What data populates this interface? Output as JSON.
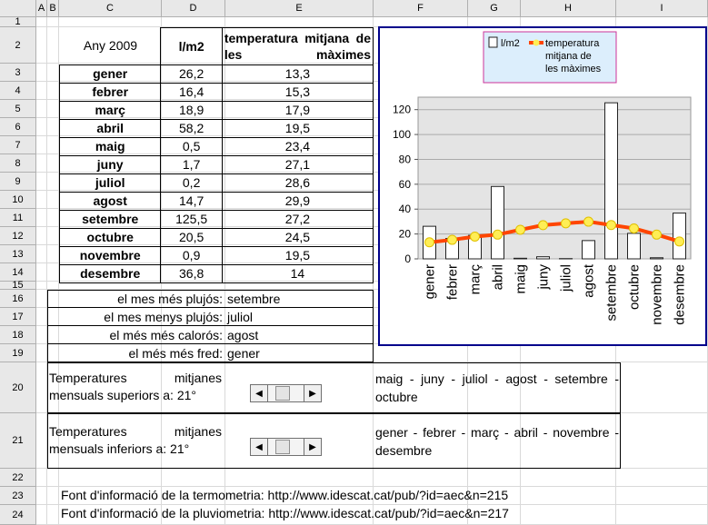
{
  "columns": [
    "A",
    "B",
    "C",
    "D",
    "E",
    "F",
    "G",
    "H",
    "I"
  ],
  "rows": [
    "1",
    "2",
    "3",
    "4",
    "5",
    "6",
    "7",
    "8",
    "9",
    "10",
    "11",
    "12",
    "13",
    "14",
    "15",
    "16",
    "17",
    "18",
    "19",
    "20",
    "21",
    "22",
    "23",
    "24"
  ],
  "table": {
    "year_label": "Any 2009",
    "col_rain": "l/m2",
    "col_temp": "temperatura mitjana de les màximes",
    "months": [
      {
        "name": "gener",
        "rain": "26,2",
        "temp": "13,3"
      },
      {
        "name": "febrer",
        "rain": "16,4",
        "temp": "15,3"
      },
      {
        "name": "març",
        "rain": "18,9",
        "temp": "17,9"
      },
      {
        "name": "abril",
        "rain": "58,2",
        "temp": "19,5"
      },
      {
        "name": "maig",
        "rain": "0,5",
        "temp": "23,4"
      },
      {
        "name": "juny",
        "rain": "1,7",
        "temp": "27,1"
      },
      {
        "name": "juliol",
        "rain": "0,2",
        "temp": "28,6"
      },
      {
        "name": "agost",
        "rain": "14,7",
        "temp": "29,9"
      },
      {
        "name": "setembre",
        "rain": "125,5",
        "temp": "27,2"
      },
      {
        "name": "octubre",
        "rain": "20,5",
        "temp": "24,5"
      },
      {
        "name": "novembre",
        "rain": "0,9",
        "temp": "19,5"
      },
      {
        "name": "desembre",
        "rain": "36,8",
        "temp": "14"
      }
    ]
  },
  "summary": [
    {
      "label": "el mes més plujós:",
      "value": "setembre"
    },
    {
      "label": "el mes menys plujós:",
      "value": "juliol"
    },
    {
      "label": "el més més calorós:",
      "value": "agost"
    },
    {
      "label": "el més més fred:",
      "value": "gener"
    }
  ],
  "controls": {
    "sup_label_1": "Temperatures mitjanes",
    "sup_label_2": "mensuals superiors a: 21°",
    "sup_result": "maig - juny - juliol - agost - setembre - octubre",
    "inf_label_1": "Temperatures mitjanes",
    "inf_label_2": "mensuals inferiors a: 21°",
    "inf_result": "gener - febrer - març - abril - novembre - desembre",
    "left_arrow": "◀",
    "right_arrow": "▶"
  },
  "sources": {
    "thermo": "Font d'informació de la termometria: http://www.idescat.cat/pub/?id=aec&n=215",
    "pluvio": "Font d'informació de la pluviometria: http://www.idescat.cat/pub/?id=aec&n=217"
  },
  "colors": {
    "chart_border": "#00008b",
    "plot_bg": "#e4e4e4",
    "line": "#ff4500",
    "marker": "#ffee55",
    "legend_border": "#cc3399"
  },
  "chart_data": {
    "type": "bar",
    "categories": [
      "gener",
      "febrer",
      "març",
      "abril",
      "maig",
      "juny",
      "juliol",
      "agost",
      "setembre",
      "octubre",
      "novembre",
      "desembre"
    ],
    "series": [
      {
        "name": "l/m2",
        "type": "bar",
        "values": [
          26.2,
          16.4,
          18.9,
          58.2,
          0.5,
          1.7,
          0.2,
          14.7,
          125.5,
          20.5,
          0.9,
          36.8
        ]
      },
      {
        "name": "temperatura mitjana de les màximes",
        "type": "line",
        "values": [
          13.3,
          15.3,
          17.9,
          19.5,
          23.4,
          27.1,
          28.6,
          29.9,
          27.2,
          24.5,
          19.5,
          14
        ]
      }
    ],
    "yticks": [
      0,
      20,
      40,
      60,
      80,
      100,
      120
    ],
    "ylim": [
      0,
      130
    ],
    "grid": true,
    "legend_position": "top"
  }
}
